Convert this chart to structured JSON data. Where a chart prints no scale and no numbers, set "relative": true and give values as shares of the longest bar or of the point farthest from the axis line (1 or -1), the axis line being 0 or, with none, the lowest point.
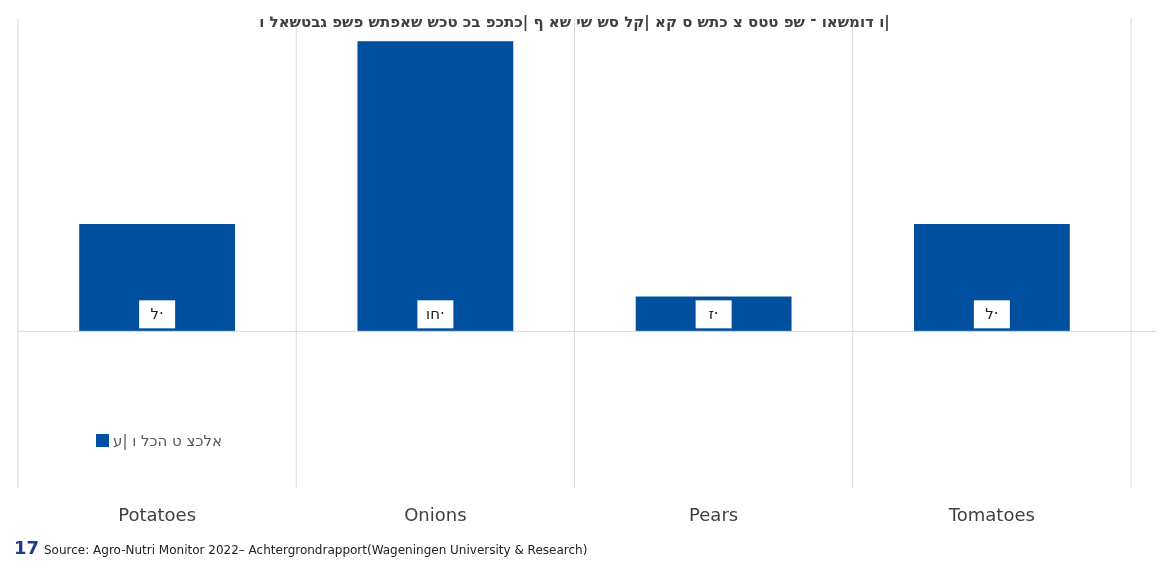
{
  "chart_data": {
    "type": "bar",
    "title": "ו לאשטבג פשפ שתפאש שכט כב פכתכ| ף אש יש שס לק| אק ס שתכ צ סטט פש ־ ואשמוד ו|",
    "categories": [
      "Potatoes",
      "Onions",
      "Pears",
      "Tomatoes"
    ],
    "series": [
      {
        "name": "ע| ו לכה ט צכלא",
        "color": "#00509f",
        "values": [
          0.37,
          1,
          0.12,
          0.37
        ]
      }
    ],
    "relative": true,
    "value_labels": [
      "ל·",
      "וח·",
      "ז·",
      "ל·"
    ],
    "grid": "x",
    "legend": "bottom left",
    "annotations": [
      "17",
      "Source: Agro-Nutri Monitor 2022– Achtergrondrapport(Wageningen University & Research)"
    ]
  }
}
